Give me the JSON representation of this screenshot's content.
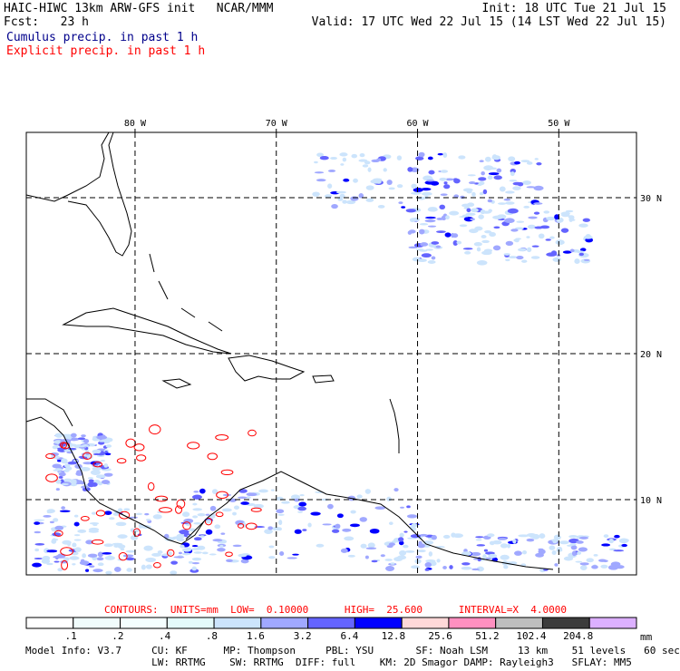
{
  "header": {
    "title": "HAIC-HIWC 13km ARW-GFS init   NCAR/MMM",
    "init": "Init: 18 UTC Tue 21 Jul 15",
    "fcst": "Fcst:   23 h",
    "valid": "Valid: 17 UTC Wed 22 Jul 15 (14 LST Wed 22 Jul 15)",
    "cumulus": "Cumulus precip. in past 1 h",
    "explicit": "Explicit precip. in past 1 h"
  },
  "chart_data": {
    "type": "heatmap",
    "title": "Cumulus precip. / Explicit precip. in past 1 h",
    "x_ticks": [
      "80 W",
      "70 W",
      "60 W",
      "50 W"
    ],
    "x_values": [
      -80,
      -70,
      -60,
      -50
    ],
    "y_ticks": [
      "30 N",
      "20 N",
      "10 N"
    ],
    "y_values": [
      30,
      20,
      10
    ],
    "xlim": [
      -87.7,
      -44.5
    ],
    "ylim": [
      5,
      34.5
    ],
    "grid": true,
    "contours": {
      "text": "CONTOURS:  UNITS=mm  LOW=  0.10000      HIGH=  25.600      INTERVAL=X  4.0000",
      "units": "mm",
      "low": 0.1,
      "high": 25.6,
      "interval_factor": 4.0
    },
    "colorbar": {
      "levels": [
        ".1",
        ".2",
        ".4",
        ".8",
        "1.6",
        "3.2",
        "6.4",
        "12.8",
        "25.6",
        "51.2",
        "102.4",
        "204.8"
      ],
      "units": "mm",
      "colors": [
        "#ffffff",
        "#f0fcfc",
        "#f4fefe",
        "#e4fafa",
        "#cce4fc",
        "#a0a8ff",
        "#6464ff",
        "#0000ff",
        "#ffd8d8",
        "#ff90c0",
        "#bebebe",
        "#3c3c3c",
        "#dcb0ff"
      ]
    }
  },
  "footer": {
    "line1": "Model Info: V3.7     CU: KF      MP: Thompson     PBL: YSU       SF: Noah LSM     13 km    51 levels   60 sec",
    "line2": "                     LW: RRTMG    SW: RRTMG  DIFF: full    KM: 2D Smagor DAMP: Rayleigh3   SFLAY: MM5"
  }
}
